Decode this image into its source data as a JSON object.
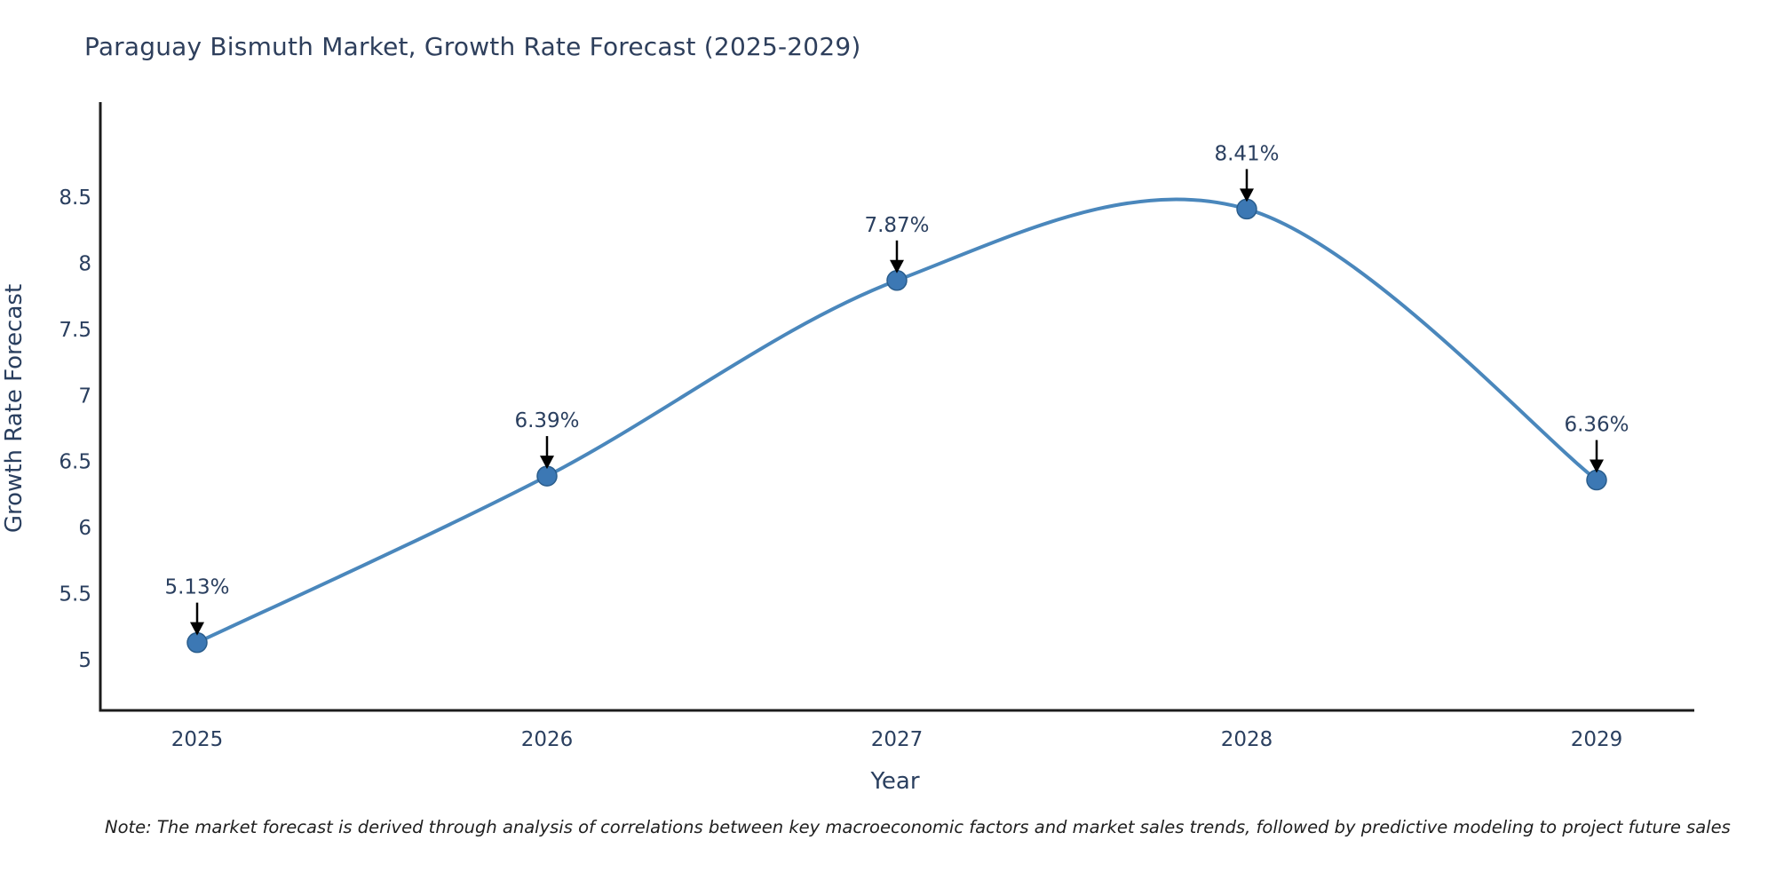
{
  "chart_data": {
    "type": "line",
    "title": "Paraguay Bismuth Market, Growth Rate Forecast (2025-2029)",
    "xlabel": "Year",
    "ylabel": "Growth Rate Forecast",
    "categories": [
      "2025",
      "2026",
      "2027",
      "2028",
      "2029"
    ],
    "values": [
      5.13,
      6.39,
      7.87,
      8.41,
      6.36
    ],
    "point_labels": [
      "5.13%",
      "6.39%",
      "7.87%",
      "8.41%",
      "6.36%"
    ],
    "yticks": [
      5,
      5.5,
      6,
      6.5,
      7,
      7.5,
      8,
      8.5
    ],
    "ylim": [
      4.62,
      9.2
    ],
    "line_shape": "spline",
    "grid": false,
    "legend_position": "none",
    "colors": {
      "line": "#4a87bc",
      "marker_fill": "#3c78b4",
      "marker_border": "#2a5d8c",
      "label_text": "#2a3f5f",
      "axis_line": "#1c1c1c",
      "arrow": "#000000",
      "background": "#ffffff"
    },
    "note": "Note: The market forecast is derived through analysis of correlations between key macroeconomic factors and market sales trends, followed by predictive modeling to project future sales"
  }
}
